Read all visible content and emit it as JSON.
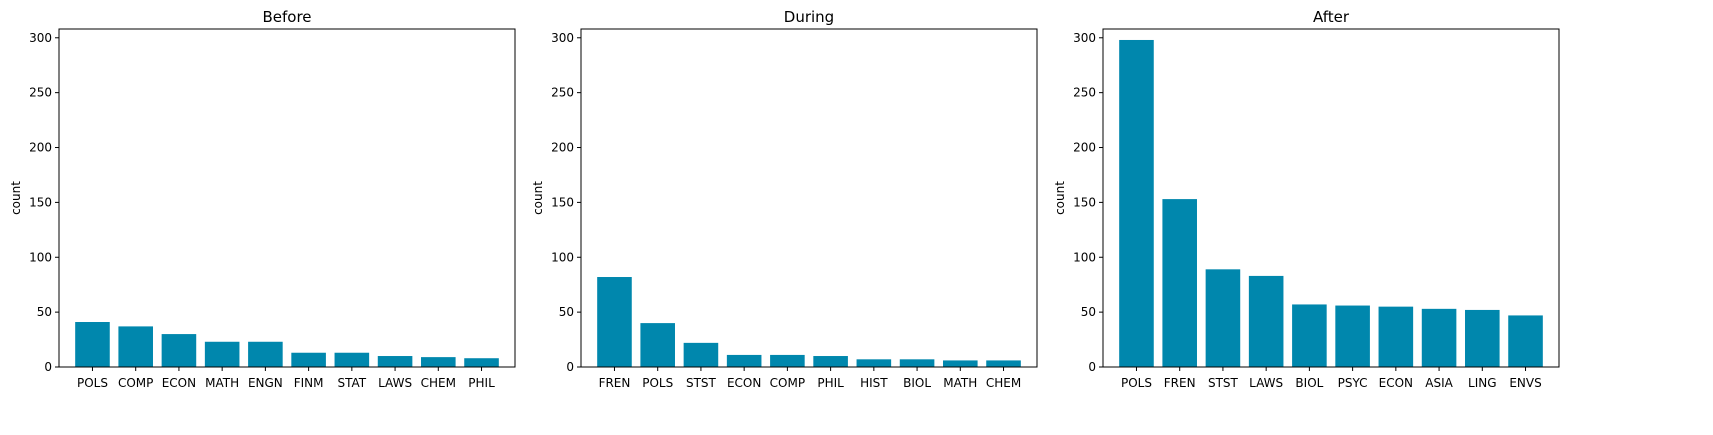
{
  "chart_data": [
    {
      "type": "bar",
      "title": "Before",
      "xlabel": "",
      "ylabel": "count",
      "ylim": [
        0,
        308
      ],
      "yticks": [
        0,
        50,
        100,
        150,
        200,
        250,
        300
      ],
      "categories": [
        "POLS",
        "COMP",
        "ECON",
        "MATH",
        "ENGN",
        "FINM",
        "STAT",
        "LAWS",
        "CHEM",
        "PHIL"
      ],
      "values": [
        41,
        37,
        30,
        23,
        23,
        13,
        13,
        10,
        9,
        8
      ],
      "color": "#0087ad",
      "grid": false
    },
    {
      "type": "bar",
      "title": "During",
      "xlabel": "",
      "ylabel": "count",
      "ylim": [
        0,
        308
      ],
      "yticks": [
        0,
        50,
        100,
        150,
        200,
        250,
        300
      ],
      "categories": [
        "FREN",
        "POLS",
        "STST",
        "ECON",
        "COMP",
        "PHIL",
        "HIST",
        "BIOL",
        "MATH",
        "CHEM"
      ],
      "values": [
        82,
        40,
        22,
        11,
        11,
        10,
        7,
        7,
        6,
        6
      ],
      "color": "#0087ad",
      "grid": false
    },
    {
      "type": "bar",
      "title": "After",
      "xlabel": "",
      "ylabel": "count",
      "ylim": [
        0,
        308
      ],
      "yticks": [
        0,
        50,
        100,
        150,
        200,
        250,
        300
      ],
      "categories": [
        "POLS",
        "FREN",
        "STST",
        "LAWS",
        "BIOL",
        "PSYC",
        "ECON",
        "ASIA",
        "LING",
        "ENVS"
      ],
      "values": [
        298,
        153,
        89,
        83,
        57,
        56,
        55,
        53,
        52,
        47
      ],
      "color": "#0087ad",
      "grid": false
    }
  ]
}
